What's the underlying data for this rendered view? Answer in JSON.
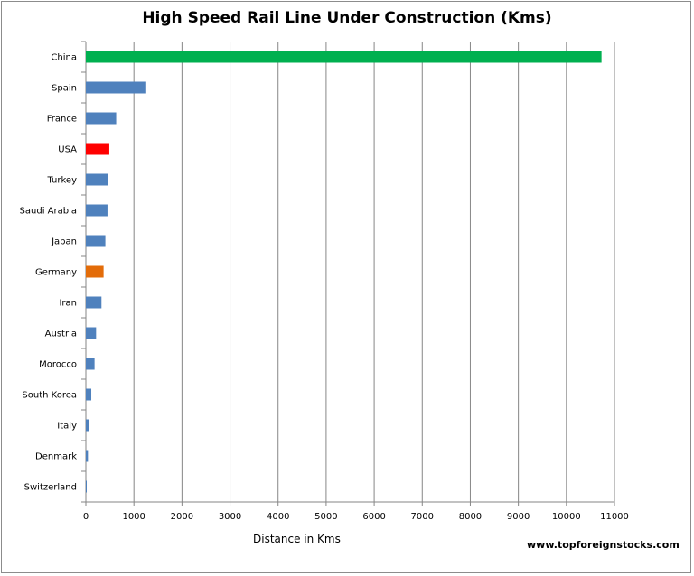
{
  "chart_data": {
    "type": "bar",
    "orientation": "horizontal",
    "title": "High Speed Rail Line Under Construction (Kms)",
    "xlabel": "Distance in Kms",
    "ylabel": "",
    "xlim": [
      0,
      11000
    ],
    "xticks": [
      0,
      1000,
      2000,
      3000,
      4000,
      5000,
      6000,
      7000,
      8000,
      9000,
      10000,
      11000
    ],
    "grid": "vertical",
    "legend": "none",
    "categories": [
      "China",
      "Spain",
      "France",
      "USA",
      "Turkey",
      "Saudi Arabia",
      "Japan",
      "Germany",
      "Iran",
      "Austria",
      "Morocco",
      "South Korea",
      "Italy",
      "Denmark",
      "Switzerland"
    ],
    "values": [
      10730,
      1256,
      631,
      488,
      469,
      450,
      406,
      369,
      325,
      213,
      181,
      113,
      69,
      44,
      13
    ],
    "colors": [
      "#00b050",
      "#4f81bd",
      "#4f81bd",
      "#ff0000",
      "#4f81bd",
      "#4f81bd",
      "#4f81bd",
      "#e36c09",
      "#4f81bd",
      "#4f81bd",
      "#4f81bd",
      "#4f81bd",
      "#4f81bd",
      "#4f81bd",
      "#4f81bd"
    ]
  },
  "source": "www.topforeignstocks.com"
}
